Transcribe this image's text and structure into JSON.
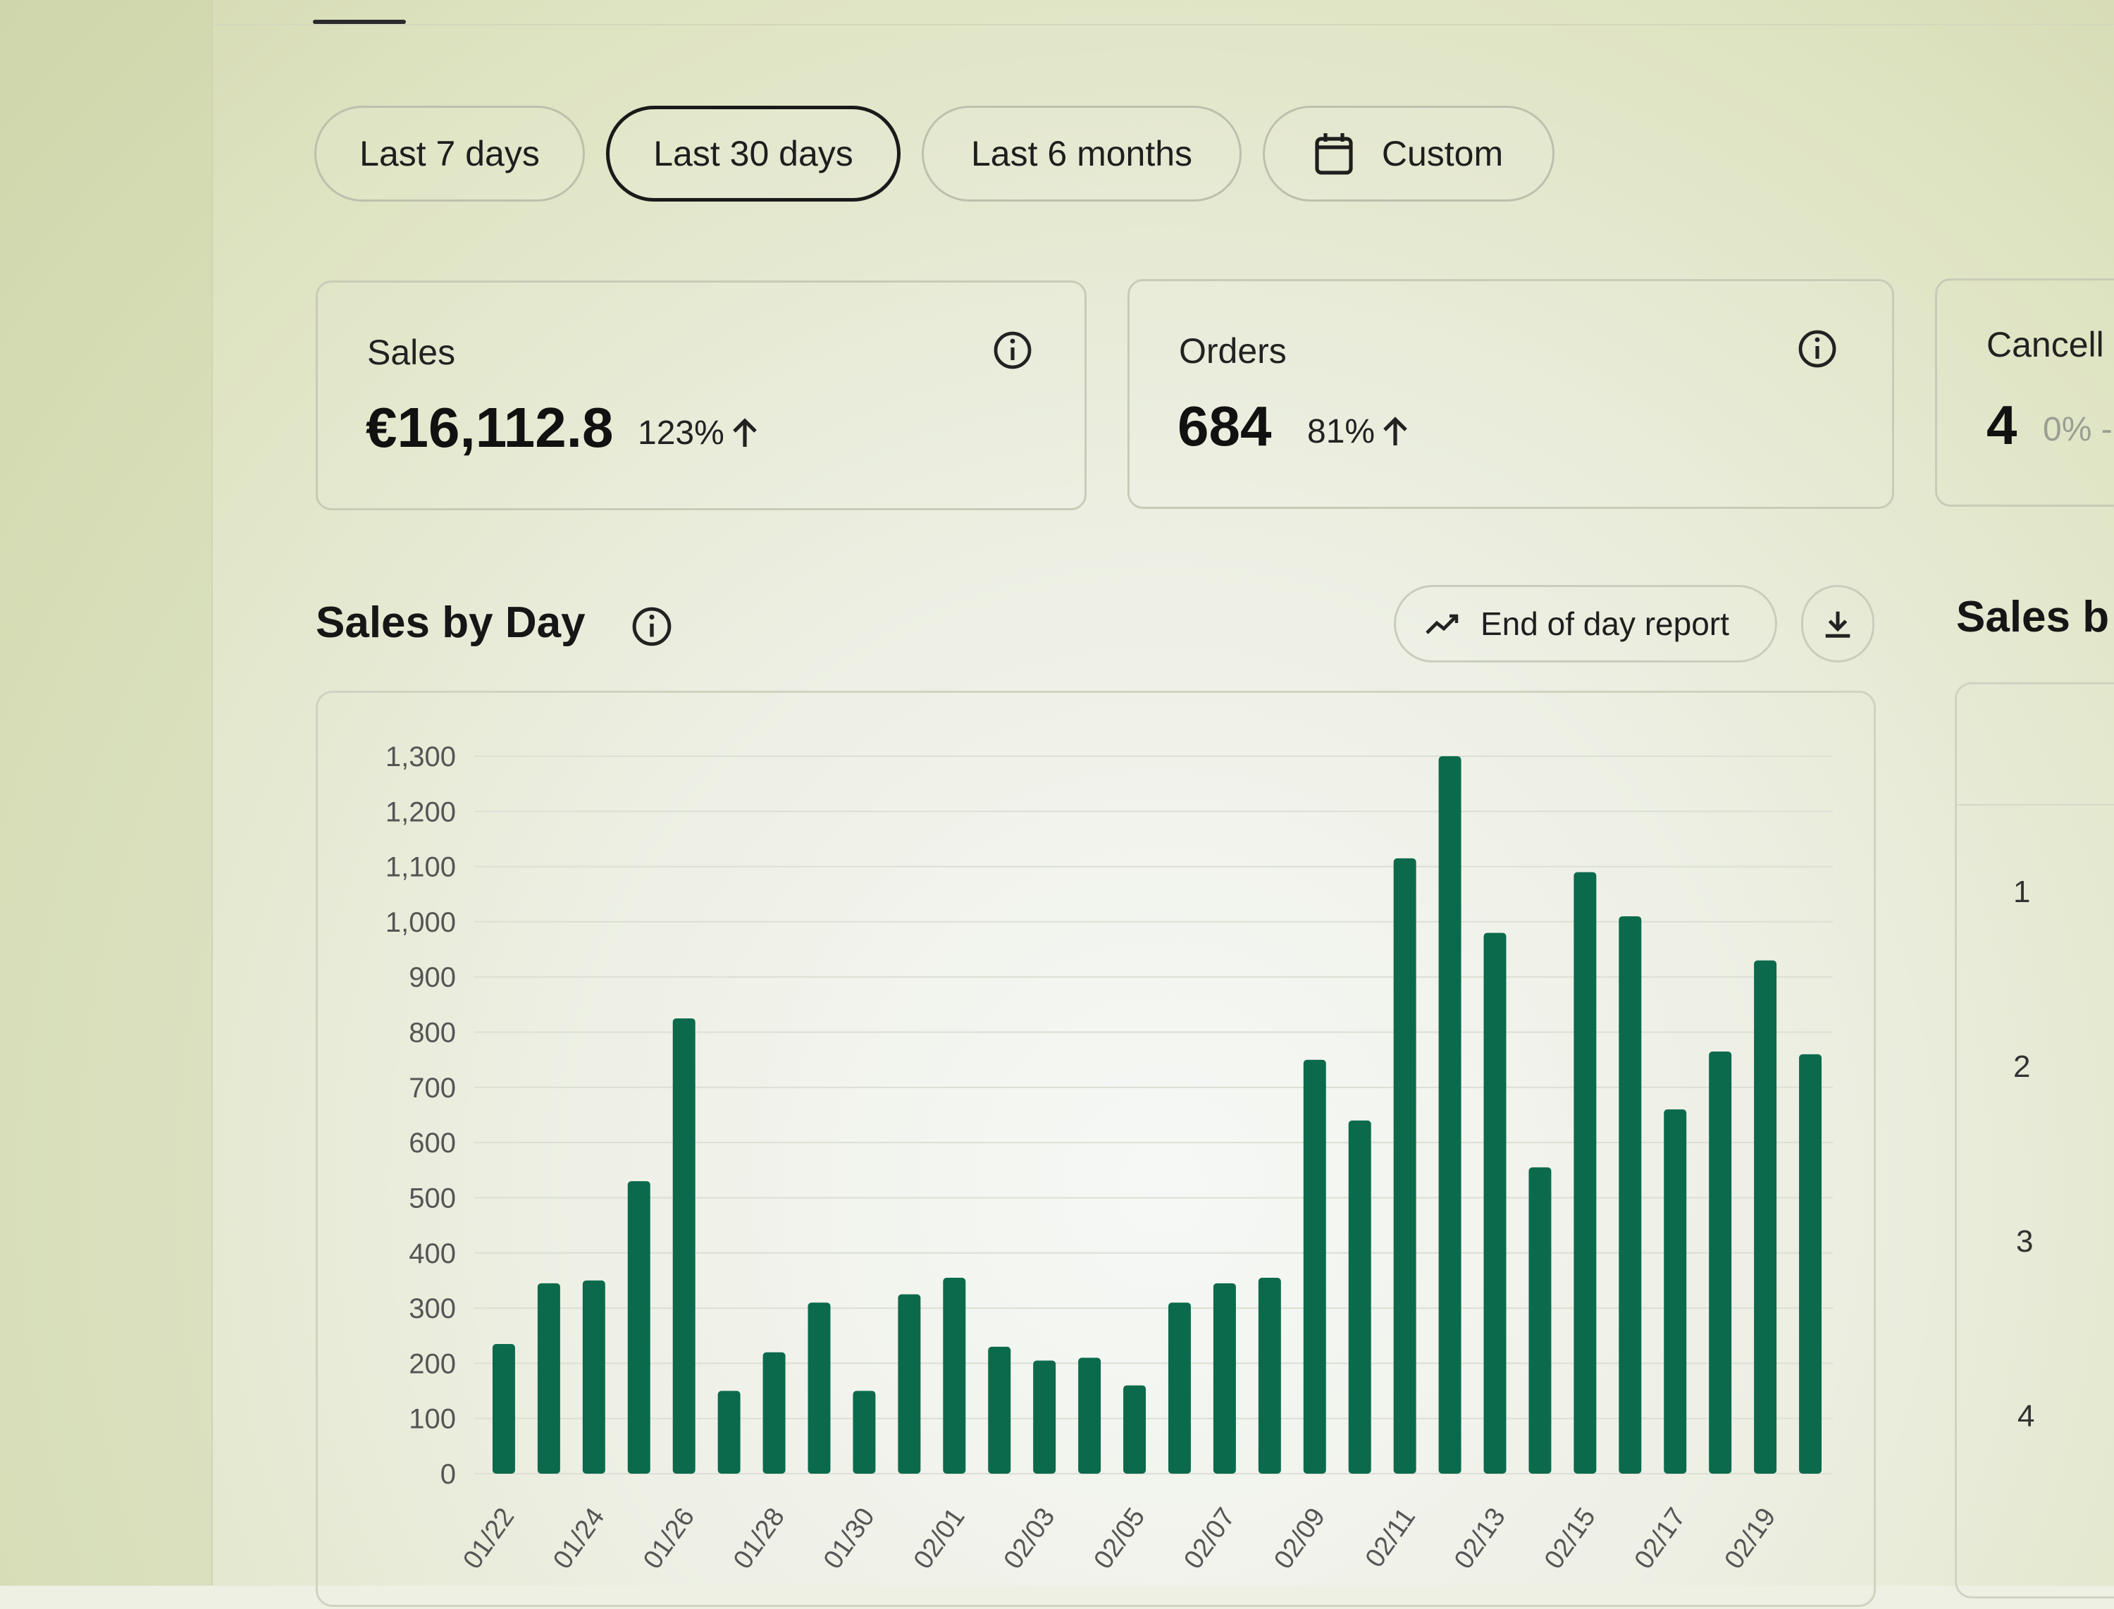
{
  "filters": {
    "chips": [
      {
        "label": "Last 7 days",
        "selected": false
      },
      {
        "label": "Last 30 days",
        "selected": true
      },
      {
        "label": "Last 6 months",
        "selected": false
      },
      {
        "label": "Custom",
        "selected": false,
        "icon": "calendar-icon"
      }
    ]
  },
  "kpis": {
    "sales": {
      "label": "Sales",
      "value": "€16,112.8",
      "delta": "123%",
      "trend": "up",
      "icon": "info-icon"
    },
    "orders": {
      "label": "Orders",
      "value": "684",
      "delta": "81%",
      "trend": "up",
      "icon": "info-icon"
    },
    "cancelled": {
      "label": "Cancell",
      "value": "4",
      "delta": "0% -"
    }
  },
  "sales_by_day": {
    "title": "Sales by Day",
    "report_button": "End of day report",
    "report_icon": "trend-line-icon",
    "download_icon": "download-icon"
  },
  "side_panel": {
    "title": "Sales b",
    "ranks": [
      "1",
      "2",
      "3",
      "4"
    ]
  },
  "colors": {
    "bar": "#0b6a4c",
    "accent": "#1a1a1a"
  },
  "chart_data": {
    "type": "bar",
    "title": "Sales by Day",
    "xlabel": "",
    "ylabel": "",
    "ylim": [
      0,
      1300
    ],
    "yticks": [
      0,
      100,
      200,
      300,
      400,
      500,
      600,
      700,
      800,
      900,
      1000,
      1100,
      1200,
      1300
    ],
    "ytick_labels": [
      "0",
      "100",
      "200",
      "300",
      "400",
      "500",
      "600",
      "700",
      "800",
      "900",
      "1,000",
      "1,100",
      "1,200",
      "1,300"
    ],
    "categories": [
      "01/22",
      "01/23",
      "01/24",
      "01/25",
      "01/26",
      "01/27",
      "01/28",
      "01/29",
      "01/30",
      "01/31",
      "02/01",
      "02/02",
      "02/03",
      "02/04",
      "02/05",
      "02/06",
      "02/07",
      "02/08",
      "02/09",
      "02/10",
      "02/11",
      "02/12",
      "02/13",
      "02/14",
      "02/15",
      "02/16",
      "02/17",
      "02/18",
      "02/19",
      "02/20"
    ],
    "xtick_labels": [
      "01/22",
      "01/24",
      "01/26",
      "01/28",
      "01/30",
      "02/01",
      "02/03",
      "02/05",
      "02/07",
      "02/09",
      "02/11",
      "02/13",
      "02/15",
      "02/17",
      "02/19"
    ],
    "values": [
      235,
      345,
      350,
      530,
      825,
      150,
      220,
      310,
      150,
      325,
      355,
      230,
      205,
      210,
      160,
      310,
      345,
      355,
      750,
      640,
      1115,
      1300,
      980,
      555,
      1090,
      1010,
      660,
      765,
      930,
      760
    ],
    "grid": true
  }
}
